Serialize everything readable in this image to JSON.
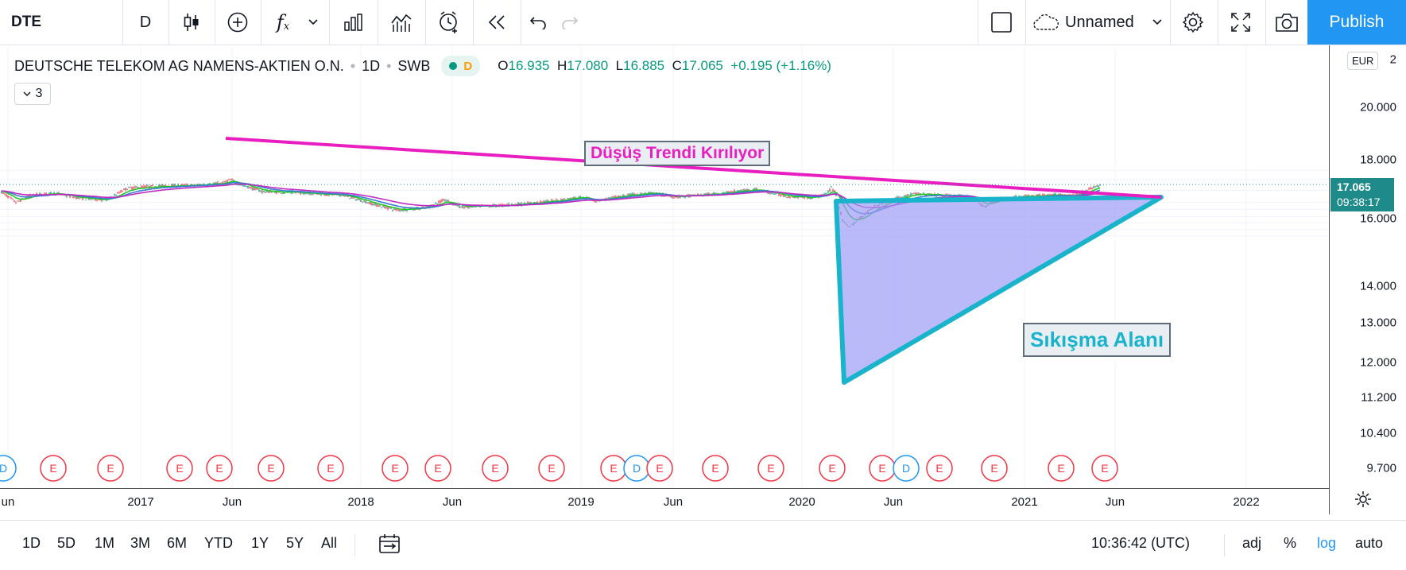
{
  "toolbar": {
    "symbol": "DTE",
    "interval": "D",
    "template_name": "Unnamed",
    "publish_label": "Publish"
  },
  "legend": {
    "title": "DEUTSCHE TELEKOM AG NAMENS-AKTIEN O.N.",
    "interval": "1D",
    "exchange": "SWB",
    "badge": "D",
    "open_label": "O",
    "open": "16.935",
    "high_label": "H",
    "high": "17.080",
    "low_label": "L",
    "low": "16.885",
    "close_label": "C",
    "close": "17.065",
    "change": "+0.195 (+1.16%)",
    "indicators_count": "3"
  },
  "price_axis": {
    "currency": "EUR",
    "labels": [
      "2",
      "20.000",
      "18.000",
      "16.000",
      "14.000",
      "13.000",
      "12.000",
      "11.200",
      "10.400",
      "9.700"
    ],
    "current_price": "17.065",
    "countdown": "09:38:17"
  },
  "time_axis": {
    "labels": [
      "un",
      "2017",
      "Jun",
      "2018",
      "Jun",
      "2019",
      "Jun",
      "2020",
      "Jun",
      "2021",
      "Jun",
      "2022"
    ]
  },
  "annotations": {
    "trend_label": "Düşüş Trendi Kırılıyor",
    "zone_label": "Sıkışma Alanı"
  },
  "events": {
    "markers": [
      "D",
      "E",
      "E",
      "E",
      "E",
      "E",
      "E",
      "E",
      "E",
      "E",
      "E",
      "E",
      "D",
      "E",
      "E",
      "E",
      "E",
      "E",
      "D",
      "E",
      "E",
      "E",
      "E"
    ]
  },
  "bottom_bar": {
    "ranges": [
      "1D",
      "5D",
      "1M",
      "3M",
      "6M",
      "YTD",
      "1Y",
      "5Y",
      "All"
    ],
    "clock": "10:36:42 (UTC)",
    "adj_label": "adj",
    "percent_label": "%",
    "log_label": "log",
    "auto_label": "auto"
  },
  "colors": {
    "accent": "#2196f3",
    "trendline": "#e91ec0",
    "zone": "#1ab3cc",
    "zone_fill": "#9c9cf5",
    "up": "#089981",
    "down": "#f23645",
    "ema_green": "#22c722",
    "ema_blue": "#3a7bd5",
    "ema_magenta": "#c02bc0"
  }
}
